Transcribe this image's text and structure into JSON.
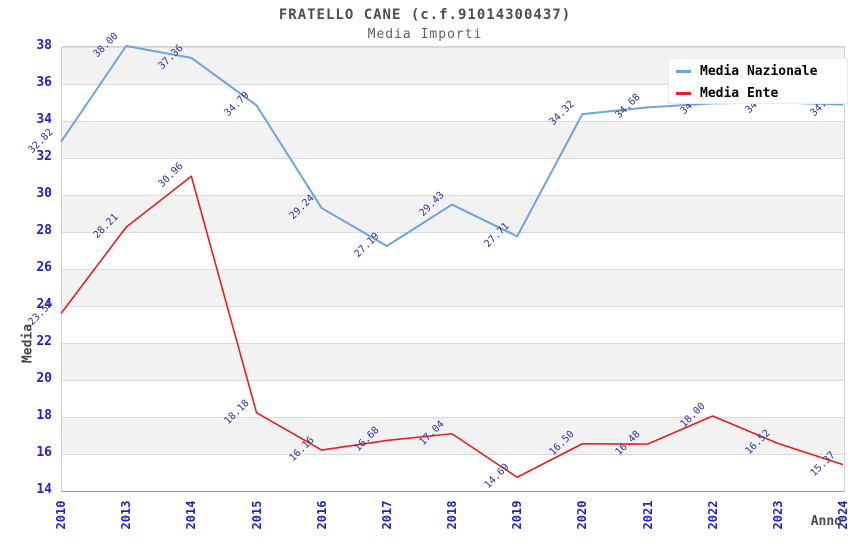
{
  "title": "FRATELLO CANE (c.f.91014300437)",
  "subtitle": "Media Importi",
  "legend": [
    {
      "label": "Media Nazionale",
      "color": "#6FA3DC"
    },
    {
      "label": "Media Ente",
      "color": "#E51F1F"
    }
  ],
  "colors": {
    "line_nazionale": "#6FA3DC",
    "line_ente": "#E51F1F",
    "tick_label_blue": "#2222CC",
    "data_label_navy": "#333399",
    "band_gray": "#F2F2F2",
    "gridline": "#DCDCDC"
  },
  "chart_data": {
    "type": "line",
    "title": "FRATELLO CANE (c.f.91014300437)",
    "subtitle": "Media Importi",
    "xlabel": "Anno",
    "ylabel": "Media",
    "x": [
      "2010",
      "2013",
      "2014",
      "2015",
      "2016",
      "2017",
      "2018",
      "2019",
      "2020",
      "2021",
      "2022",
      "2023",
      "2024"
    ],
    "series": [
      {
        "name": "Media Nazionale",
        "color": "#6FA3DC",
        "values": [
          32.82,
          38.0,
          37.36,
          34.79,
          29.24,
          27.19,
          29.43,
          27.71,
          34.32,
          34.68,
          34.9,
          34.95,
          34.83
        ],
        "point_labels": [
          "32.82",
          "38.00",
          "37.36",
          "34.79",
          "29.24",
          "27.19",
          "29.43",
          "27.71",
          "34.32",
          "34.68",
          "34.90",
          "34.95",
          "34.83"
        ]
      },
      {
        "name": "Media Ente",
        "color": "#E51F1F",
        "values": [
          23.54,
          28.21,
          30.96,
          18.18,
          16.16,
          16.68,
          17.04,
          14.69,
          16.5,
          16.48,
          18.0,
          16.52,
          15.37
        ],
        "point_labels": [
          "23.54",
          "28.21",
          "30.96",
          "18.18",
          "16.16",
          "16.68",
          "17.04",
          "14.69",
          "16.50",
          "16.48",
          "18.00",
          "16.52",
          "15.37"
        ]
      }
    ],
    "ylim": [
      14,
      38
    ],
    "ytick_step": 2,
    "grid": true,
    "banded_background": true,
    "legend_position": "top-right"
  }
}
